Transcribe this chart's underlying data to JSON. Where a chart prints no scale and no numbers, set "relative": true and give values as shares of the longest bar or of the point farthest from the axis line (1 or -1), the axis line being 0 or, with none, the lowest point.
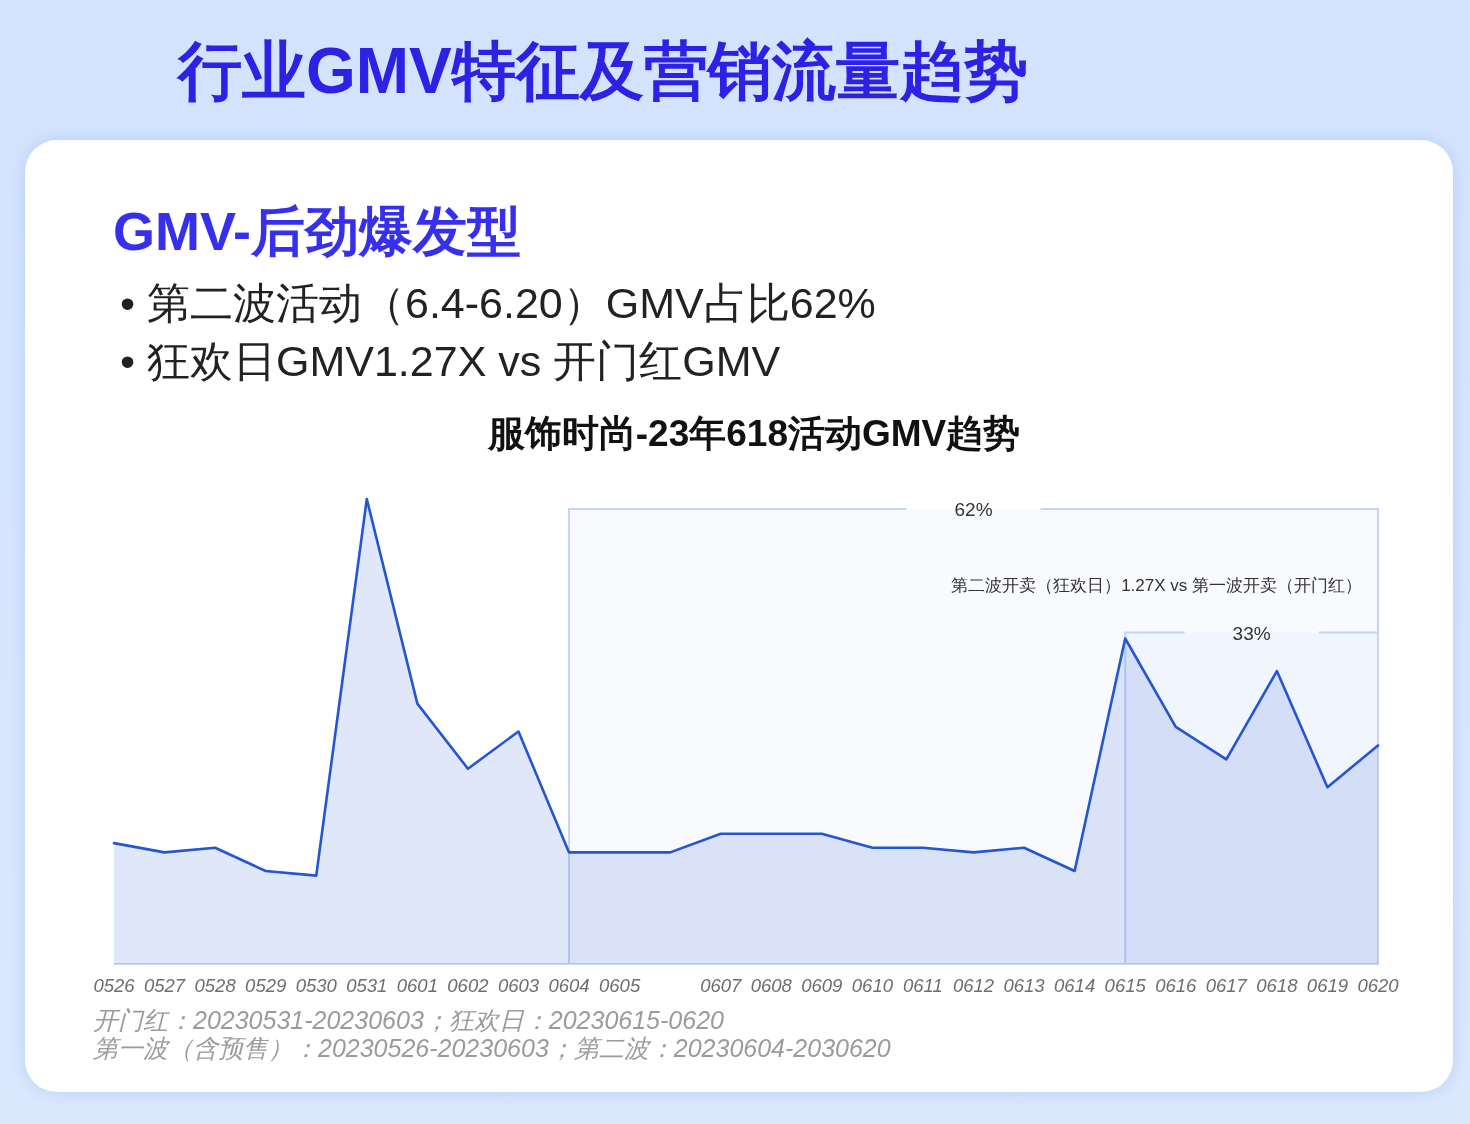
{
  "chart_data": {
    "type": "area",
    "title": "行业GMV特征及营销流量趋势",
    "subtitle": "GMV-后劲爆发型",
    "categories": [
      "0526",
      "0527",
      "0528",
      "0529",
      "0530",
      "0531",
      "0601",
      "0602",
      "0603",
      "0604",
      "0605",
      null,
      "0607",
      "0608",
      "0609",
      "0610",
      "0611",
      "0612",
      "0613",
      "0614",
      "0615",
      "0616",
      "0617",
      "0618",
      "0619",
      "0620"
    ],
    "relative": true,
    "color": "#2456d0",
    "values": [
      0.26,
      0.24,
      0.25,
      0.2,
      0.19,
      1,
      0.56,
      0.42,
      0.5,
      0.24,
      0.24,
      0.24,
      0.28,
      0.28,
      0.28,
      0.25,
      0.25,
      0.24,
      0.25,
      0.2,
      0.7,
      0.51,
      0.44,
      0.63,
      0.38,
      0.47
    ],
    "bands": [
      {
        "axis": "x",
        "from": "0604",
        "to": "0620",
        "label": "62%",
        "color": "#c6d5f6"
      },
      {
        "axis": "x",
        "from": "0615",
        "to": "0620",
        "label": "33%",
        "color": "#c6d5f6"
      }
    ],
    "annotations": [
      "• 第二波活动（6.4-6.20）GMV占比62%",
      "• 狂欢日GMV1.27X vs 开门红GMV",
      "服饰时尚-23年618活动GMV趋势",
      "第二波开卖（狂欢日）1.27X vs 第一波开卖（开门红）",
      "开门红：20230531-20230603；狂欢日：20230615-0620",
      "第一波（含预售）：20230526-20230603；第二波：20230604-2030620"
    ]
  }
}
